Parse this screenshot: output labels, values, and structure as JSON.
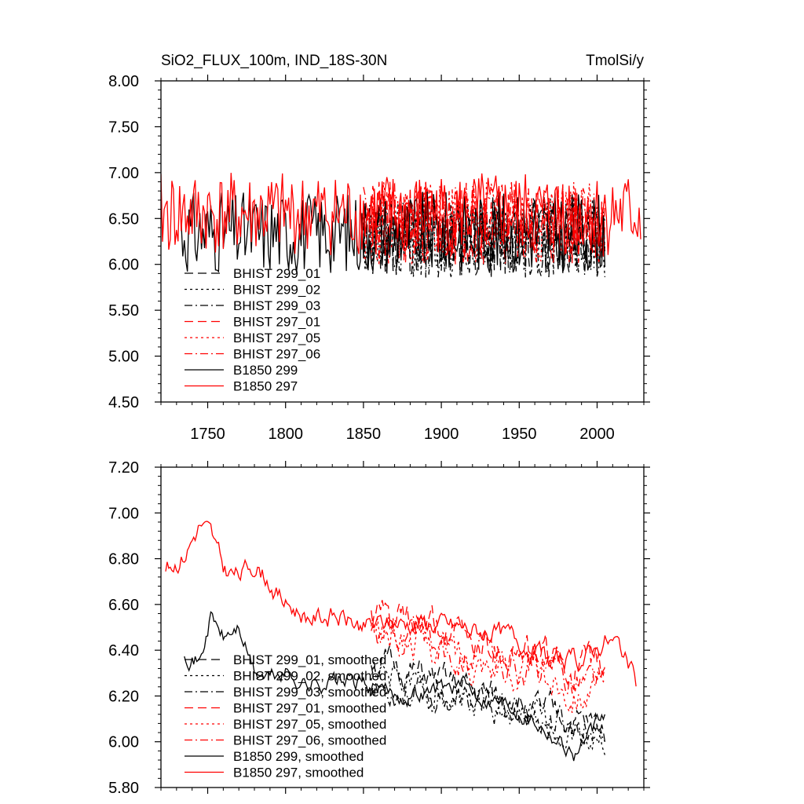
{
  "chart_data": [
    {
      "type": "line",
      "title": "SiO2_FLUX_100m, IND_18S-30N",
      "units": "TmolSi/y",
      "xlim": [
        1720,
        2030
      ],
      "ylim": [
        4.5,
        8.0
      ],
      "xticks": [
        1750,
        1800,
        1850,
        1900,
        1950,
        2000
      ],
      "xtick_labels": [
        "1750",
        "1800",
        "1850",
        "1900",
        "1950",
        "2000"
      ],
      "yticks": [
        4.5,
        5.0,
        5.5,
        6.0,
        6.5,
        7.0,
        7.5,
        8.0
      ],
      "ytick_labels": [
        "4.50",
        "5.00",
        "5.50",
        "6.00",
        "6.50",
        "7.00",
        "7.50",
        "8.00"
      ],
      "legend_position": "lower-left",
      "series": [
        {
          "name": "BHIST 299_01",
          "color": "#000000",
          "dash": "long-dash",
          "x_range": [
            1850,
            2005
          ],
          "mean": 6.3,
          "amp": 0.45,
          "seed": 11
        },
        {
          "name": "BHIST 299_02",
          "color": "#000000",
          "dash": "dot",
          "x_range": [
            1850,
            2005
          ],
          "mean": 6.3,
          "amp": 0.45,
          "seed": 12
        },
        {
          "name": "BHIST 299_03",
          "color": "#000000",
          "dash": "dash-dot",
          "x_range": [
            1850,
            2005
          ],
          "mean": 6.3,
          "amp": 0.45,
          "seed": 13
        },
        {
          "name": "BHIST 297_01",
          "color": "#ff0000",
          "dash": "long-dash",
          "x_range": [
            1850,
            2005
          ],
          "mean": 6.45,
          "amp": 0.45,
          "seed": 21
        },
        {
          "name": "BHIST 297_05",
          "color": "#ff0000",
          "dash": "dot",
          "x_range": [
            1850,
            2005
          ],
          "mean": 6.45,
          "amp": 0.45,
          "seed": 22
        },
        {
          "name": "BHIST 297_06",
          "color": "#ff0000",
          "dash": "dash-dot",
          "x_range": [
            1850,
            2005
          ],
          "mean": 6.45,
          "amp": 0.45,
          "seed": 23
        },
        {
          "name": "B1850 299",
          "color": "#000000",
          "dash": "solid",
          "x_range": [
            1733,
            2005
          ],
          "mean": 6.35,
          "amp": 0.45,
          "seed": 31
        },
        {
          "name": "B1850 297",
          "color": "#ff0000",
          "dash": "solid",
          "x_range": [
            1720,
            2028
          ],
          "mean": 6.55,
          "amp": 0.45,
          "seed": 41
        }
      ]
    },
    {
      "type": "line",
      "title": "",
      "xlim": [
        1720,
        2030
      ],
      "ylim": [
        5.8,
        7.2
      ],
      "xticks": [
        1750,
        1800,
        1850,
        1900,
        1950,
        2000
      ],
      "yticks": [
        5.8,
        6.0,
        6.2,
        6.4,
        6.6,
        6.8,
        7.0,
        7.2
      ],
      "ytick_labels": [
        "5.80",
        "6.00",
        "6.20",
        "6.40",
        "6.60",
        "6.80",
        "7.00",
        "7.20"
      ],
      "legend_position": "lower-left",
      "series": [
        {
          "name": "BHIST 299_01, smoothed",
          "color": "#000000",
          "dash": "long-dash",
          "x_range": [
            1855,
            2005
          ],
          "start": 6.35,
          "end": 6.05,
          "amp": 0.1,
          "seed": 51
        },
        {
          "name": "BHIST 299_02, smoothed",
          "color": "#000000",
          "dash": "dot",
          "x_range": [
            1855,
            2005
          ],
          "start": 6.3,
          "end": 6.0,
          "amp": 0.1,
          "seed": 52
        },
        {
          "name": "BHIST 299_03, smoothed",
          "color": "#000000",
          "dash": "dash-dot",
          "x_range": [
            1855,
            2005
          ],
          "start": 6.25,
          "end": 6.05,
          "amp": 0.1,
          "seed": 53
        },
        {
          "name": "BHIST 297_01, smoothed",
          "color": "#ff0000",
          "dash": "long-dash",
          "x_range": [
            1855,
            2005
          ],
          "start": 6.55,
          "end": 6.3,
          "amp": 0.12,
          "seed": 61
        },
        {
          "name": "BHIST 297_05, smoothed",
          "color": "#ff0000",
          "dash": "dot",
          "x_range": [
            1855,
            2005
          ],
          "start": 6.5,
          "end": 6.2,
          "amp": 0.12,
          "seed": 62
        },
        {
          "name": "BHIST 297_06, smoothed",
          "color": "#ff0000",
          "dash": "dash-dot",
          "x_range": [
            1855,
            2005
          ],
          "start": 6.5,
          "end": 6.25,
          "amp": 0.12,
          "seed": 63
        },
        {
          "name": "B1850 299, smoothed",
          "color": "#000000",
          "dash": "solid",
          "x_range": [
            1735,
            2005
          ],
          "points": [
            [
              1735,
              6.4
            ],
            [
              1745,
              6.35
            ],
            [
              1752,
              6.55
            ],
            [
              1760,
              6.45
            ],
            [
              1770,
              6.5
            ],
            [
              1780,
              6.3
            ],
            [
              1790,
              6.28
            ],
            [
              1800,
              6.3
            ],
            [
              1815,
              6.25
            ],
            [
              1830,
              6.27
            ],
            [
              1850,
              6.25
            ],
            [
              1870,
              6.2
            ],
            [
              1890,
              6.22
            ],
            [
              1910,
              6.25
            ],
            [
              1930,
              6.2
            ],
            [
              1950,
              6.15
            ],
            [
              1970,
              6.05
            ],
            [
              1985,
              5.95
            ],
            [
              2005,
              6.1
            ]
          ],
          "amp": 0.06,
          "seed": 71
        },
        {
          "name": "B1850 297, smoothed",
          "color": "#ff0000",
          "dash": "solid",
          "x_range": [
            1723,
            2025
          ],
          "points": [
            [
              1723,
              6.75
            ],
            [
              1735,
              6.82
            ],
            [
              1745,
              6.95
            ],
            [
              1752,
              6.9
            ],
            [
              1760,
              6.75
            ],
            [
              1770,
              6.72
            ],
            [
              1780,
              6.78
            ],
            [
              1790,
              6.7
            ],
            [
              1800,
              6.6
            ],
            [
              1815,
              6.55
            ],
            [
              1830,
              6.55
            ],
            [
              1850,
              6.5
            ],
            [
              1870,
              6.52
            ],
            [
              1890,
              6.52
            ],
            [
              1910,
              6.5
            ],
            [
              1930,
              6.48
            ],
            [
              1950,
              6.45
            ],
            [
              1970,
              6.35
            ],
            [
              1990,
              6.35
            ],
            [
              2005,
              6.45
            ],
            [
              2015,
              6.42
            ],
            [
              2025,
              6.25
            ]
          ],
          "amp": 0.07,
          "seed": 81
        }
      ]
    }
  ]
}
